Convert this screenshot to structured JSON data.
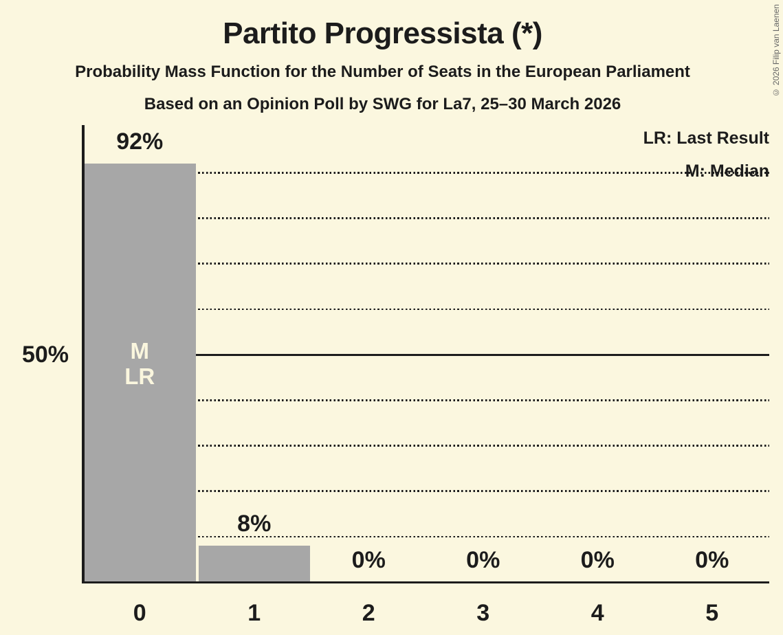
{
  "title": "Partito Progressista (*)",
  "subtitle": "Probability Mass Function for the Number of Seats in the European Parliament",
  "poll_info": "Based on an Opinion Poll by SWG for La7, 25–30 March 2026",
  "copyright": "© 2026 Filip van Laenen",
  "legend": {
    "last_result": "LR: Last Result",
    "median": "M: Median"
  },
  "y_axis": {
    "label": "50%"
  },
  "colors": {
    "background": "#FBF7DF",
    "bar": "#A7A7A7",
    "text": "#1C1C1C",
    "bar_label": "#FAF6DE",
    "copyright": "#666666"
  },
  "chart_data": {
    "type": "bar",
    "title": "Partito Progressista (*)",
    "categories": [
      "0",
      "1",
      "2",
      "3",
      "4",
      "5"
    ],
    "values": [
      92,
      8,
      0,
      0,
      0,
      0
    ],
    "value_labels": [
      "92%",
      "8%",
      "0%",
      "0%",
      "0%",
      "0%"
    ],
    "bar_annotations": [
      [
        "M",
        "LR"
      ],
      [],
      [],
      [],
      [],
      []
    ],
    "ylim": [
      0,
      100
    ],
    "solid_gridline": 50,
    "dotted_gridlines": [
      10,
      20,
      30,
      40,
      60,
      70,
      80,
      90
    ],
    "legend_entries": [
      "LR: Last Result",
      "M: Median"
    ],
    "legend_position": "top-right",
    "grid": "dotted horizontal lines every 10%, solid line at 50%"
  }
}
